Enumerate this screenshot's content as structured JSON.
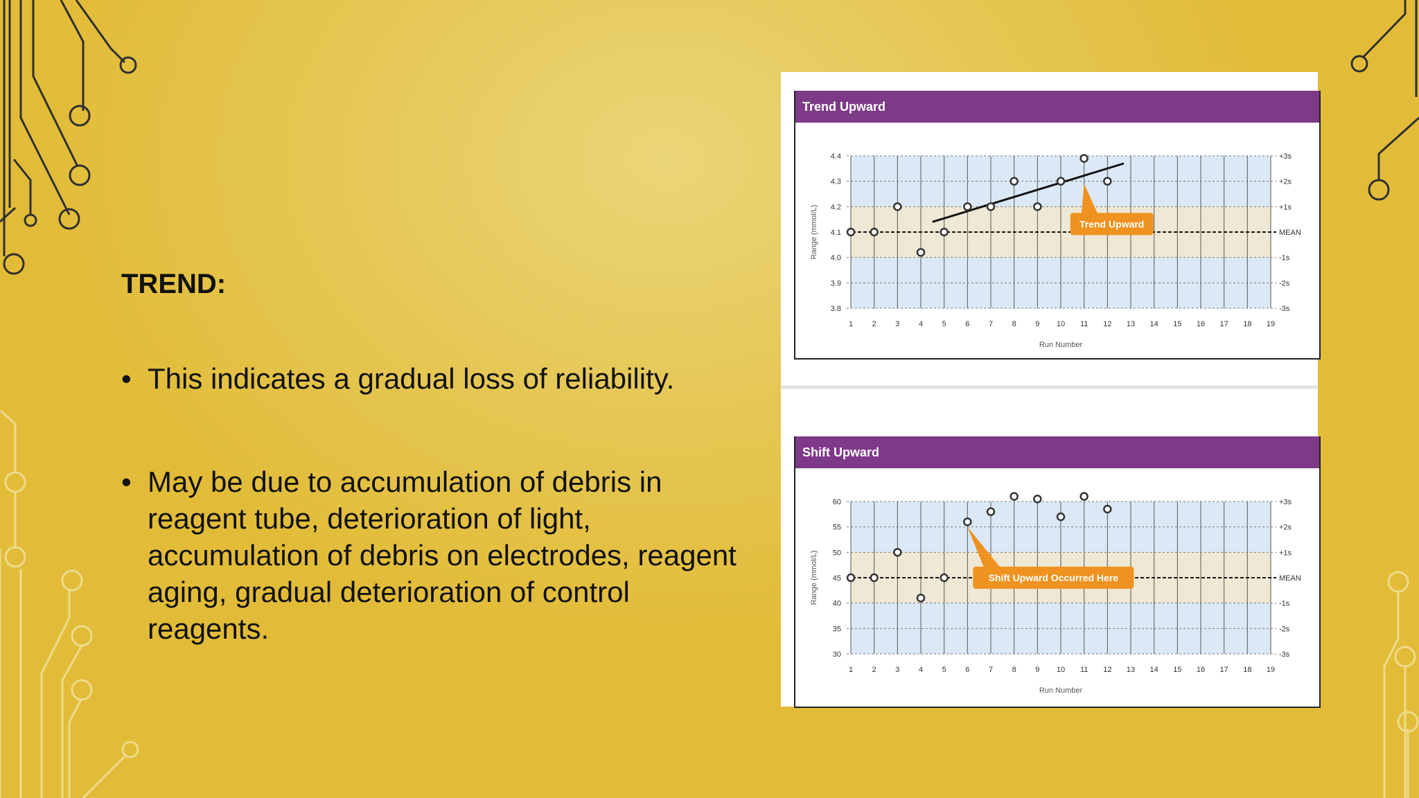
{
  "slide": {
    "title": "TREND:",
    "bullets": [
      "This indicates a gradual loss of reliability.",
      "May be due to accumulation of debris in reagent tube, deterioration of light, accumulation of debris on electrodes, reagent aging, gradual deterioration of control reagents."
    ],
    "bullet_symbol": "•"
  },
  "colors": {
    "panel_header": "#7d3a87",
    "callout": "#f0921f",
    "band_blue": "#dbe9f6",
    "band_beige": "#eee8d4"
  },
  "chart_data": [
    {
      "type": "scatter",
      "title": "Trend Upward",
      "xlabel": "Run Number",
      "ylabel": "Range (mmol/L)",
      "x": [
        1,
        2,
        3,
        4,
        5,
        6,
        7,
        8,
        9,
        10,
        11,
        12
      ],
      "y": [
        4.1,
        4.1,
        4.2,
        4.02,
        4.1,
        4.2,
        4.2,
        4.3,
        4.2,
        4.3,
        4.39,
        4.3
      ],
      "xticks": [
        "1",
        "2",
        "3",
        "4",
        "5",
        "6",
        "7",
        "8",
        "9",
        "10",
        "11",
        "12",
        "13",
        "14",
        "15",
        "16",
        "17",
        "18",
        "19"
      ],
      "yticks": [
        "4.4",
        "4.3",
        "4.2",
        "4.1",
        "4.0",
        "3.9",
        "3.8"
      ],
      "ylim": [
        3.8,
        4.4
      ],
      "xlim": [
        1,
        19
      ],
      "right_labels": [
        "+3s",
        "+2s",
        "+1s",
        "MEAN",
        "-1s",
        "-2s",
        "-3s"
      ],
      "trendline": {
        "x": [
          4.5,
          12.7
        ],
        "y": [
          4.14,
          4.37
        ]
      },
      "annotation": {
        "text": "Trend Upward",
        "x": 11,
        "y": 4.29
      },
      "grid": true
    },
    {
      "type": "scatter",
      "title": "Shift Upward",
      "xlabel": "Run Number",
      "ylabel": "Range (mmol/L)",
      "x": [
        1,
        2,
        3,
        4,
        5,
        6,
        7,
        8,
        9,
        10,
        11,
        12
      ],
      "y": [
        45,
        45,
        50,
        41,
        45,
        56,
        58,
        61,
        60.5,
        57,
        61,
        58.5
      ],
      "xticks": [
        "1",
        "2",
        "3",
        "4",
        "5",
        "6",
        "7",
        "8",
        "9",
        "10",
        "11",
        "12",
        "13",
        "14",
        "15",
        "16",
        "17",
        "18",
        "19"
      ],
      "yticks": [
        "60",
        "55",
        "50",
        "45",
        "40",
        "35",
        "30"
      ],
      "ylim": [
        30,
        60
      ],
      "xlim": [
        1,
        19
      ],
      "right_labels": [
        "+3s",
        "+2s",
        "+1s",
        "MEAN",
        "-1s",
        "-2s",
        "-3s"
      ],
      "annotation": {
        "text": "Shift Upward Occurred Here",
        "x": 6,
        "y": 55
      },
      "grid": true
    }
  ]
}
